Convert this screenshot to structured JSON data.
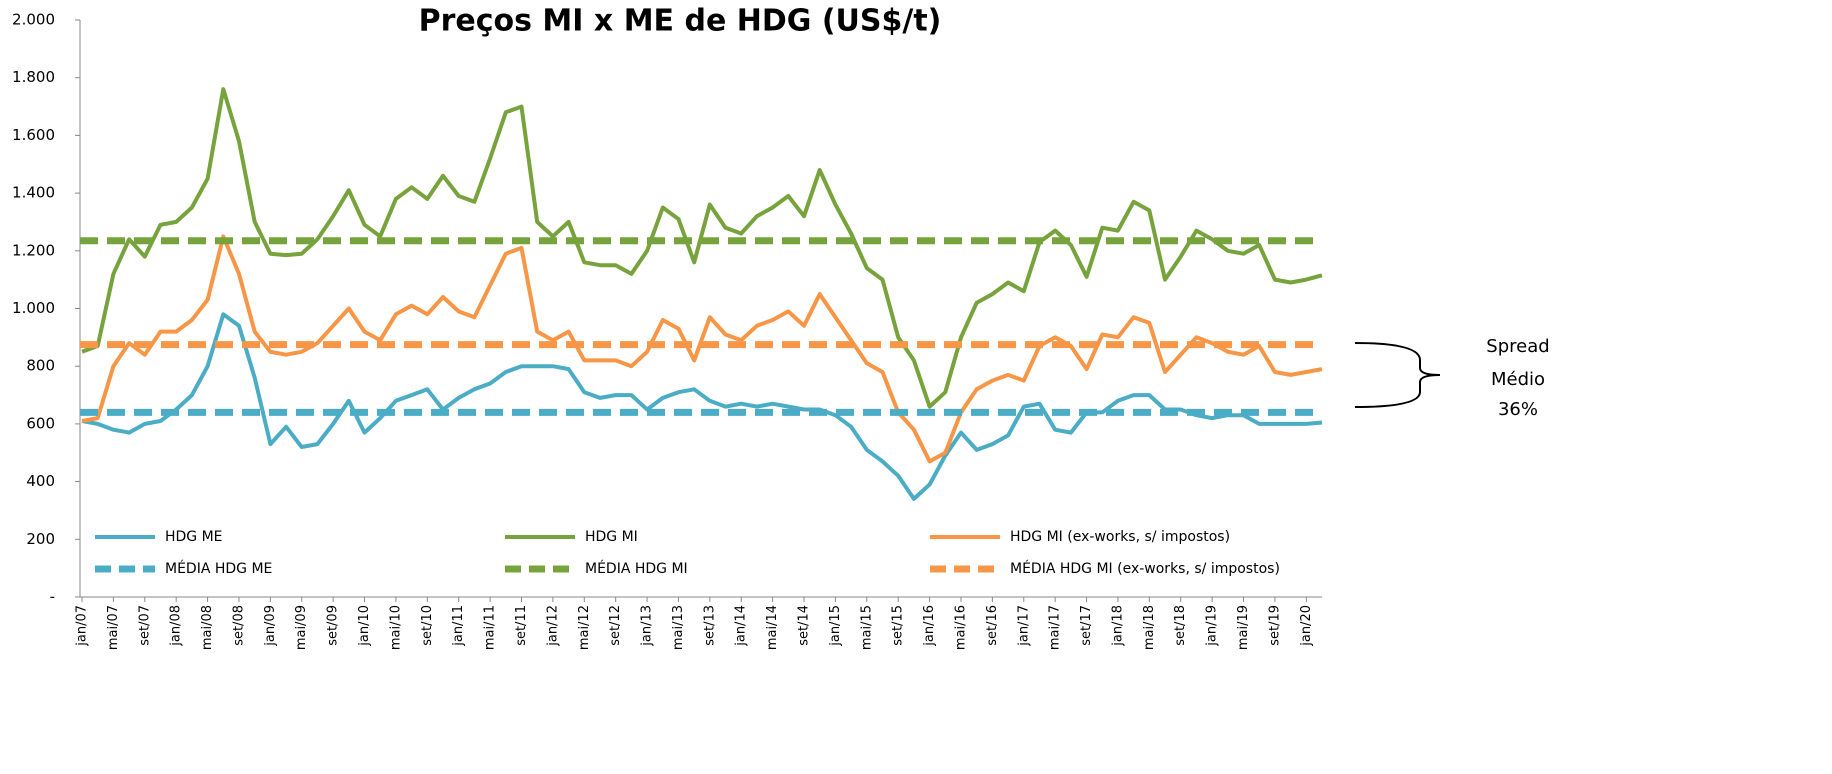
{
  "chart_data": {
    "type": "line",
    "title": "Preços MI x ME de HDG (US$/t)",
    "categories": [
      "jan/07",
      null,
      "mai/07",
      null,
      "set/07",
      null,
      "jan/08",
      null,
      "mai/08",
      null,
      "set/08",
      null,
      "jan/09",
      null,
      "mai/09",
      null,
      "set/09",
      null,
      "jan/10",
      null,
      "mai/10",
      null,
      "set/10",
      null,
      "jan/11",
      null,
      "mai/11",
      null,
      "set/11",
      null,
      "jan/12",
      null,
      "mai/12",
      null,
      "set/12",
      null,
      "jan/13",
      null,
      "mai/13",
      null,
      "set/13",
      null,
      "jan/14",
      null,
      "mai/14",
      null,
      "set/14",
      null,
      "jan/15",
      null,
      "mai/15",
      null,
      "set/15",
      null,
      "jan/16",
      null,
      "mai/16",
      null,
      "set/16",
      null,
      "jan/17",
      null,
      "mai/17",
      null,
      "set/17",
      null,
      "jan/18",
      null,
      "mai/18",
      null,
      "set/18",
      null,
      "jan/19",
      null,
      "mai/19",
      null,
      "set/19",
      null,
      "jan/20",
      null
    ],
    "series": [
      {
        "name": "HDG ME",
        "color": "#4bacc6",
        "values": [
          610,
          600,
          580,
          570,
          600,
          610,
          650,
          700,
          800,
          980,
          940,
          760,
          530,
          590,
          520,
          530,
          600,
          680,
          570,
          620,
          680,
          700,
          720,
          650,
          690,
          720,
          740,
          780,
          800,
          800,
          800,
          790,
          710,
          690,
          700,
          700,
          650,
          690,
          710,
          720,
          680,
          660,
          670,
          660,
          670,
          660,
          650,
          650,
          630,
          590,
          510,
          470,
          420,
          340,
          390,
          490,
          570,
          510,
          530,
          560,
          660,
          670,
          580,
          570,
          640,
          640,
          680,
          700,
          700,
          650,
          650,
          630,
          620,
          630,
          630,
          600,
          600,
          600,
          600,
          605
        ]
      },
      {
        "name": "HDG MI",
        "color": "#77a33c",
        "values": [
          850,
          870,
          1120,
          1240,
          1180,
          1290,
          1300,
          1350,
          1450,
          1760,
          1580,
          1300,
          1190,
          1185,
          1190,
          1240,
          1320,
          1410,
          1290,
          1250,
          1380,
          1420,
          1380,
          1460,
          1390,
          1370,
          1520,
          1680,
          1700,
          1300,
          1250,
          1300,
          1160,
          1150,
          1150,
          1120,
          1200,
          1350,
          1310,
          1160,
          1360,
          1280,
          1260,
          1320,
          1350,
          1390,
          1320,
          1480,
          1360,
          1260,
          1140,
          1100,
          900,
          820,
          660,
          710,
          900,
          1020,
          1050,
          1090,
          1060,
          1230,
          1270,
          1220,
          1110,
          1280,
          1270,
          1370,
          1340,
          1100,
          1180,
          1270,
          1240,
          1200,
          1190,
          1220,
          1100,
          1090,
          1100,
          1115
        ]
      },
      {
        "name": "HDG MI (ex-works, s/ impostos)",
        "color": "#f79646",
        "values": [
          610,
          620,
          800,
          880,
          840,
          920,
          920,
          960,
          1030,
          1250,
          1120,
          920,
          850,
          840,
          850,
          880,
          940,
          1000,
          920,
          890,
          980,
          1010,
          980,
          1040,
          990,
          970,
          1080,
          1190,
          1210,
          920,
          890,
          920,
          820,
          820,
          820,
          800,
          850,
          960,
          930,
          820,
          970,
          910,
          890,
          940,
          960,
          990,
          940,
          1050,
          970,
          890,
          810,
          780,
          640,
          580,
          470,
          500,
          640,
          720,
          750,
          770,
          750,
          870,
          900,
          870,
          790,
          910,
          900,
          970,
          950,
          780,
          840,
          900,
          880,
          850,
          840,
          870,
          780,
          770,
          780,
          790
        ]
      },
      {
        "name": "MÉDIA HDG ME",
        "color": "#4bacc6",
        "dashed": true,
        "value": 640
      },
      {
        "name": "MÉDIA HDG MI",
        "color": "#77a33c",
        "dashed": true,
        "value": 1235
      },
      {
        "name": "MÉDIA HDG MI (ex-works, s/ impostos)",
        "color": "#f79646",
        "dashed": true,
        "value": 875
      }
    ],
    "ylim": [
      0,
      2000
    ],
    "yticks": [
      {
        "value": 0,
        "label": "-"
      },
      200,
      400,
      600,
      800,
      {
        "value": 1000,
        "label": "1.000"
      },
      {
        "value": 1200,
        "label": "1.200"
      },
      {
        "value": 1400,
        "label": "1.400"
      },
      {
        "value": 1600,
        "label": "1.600"
      },
      {
        "value": 1800,
        "label": "1.800"
      },
      {
        "value": 2000,
        "label": "2.000"
      }
    ],
    "grid": false,
    "legend": "bottom",
    "annotation": [
      "Spread",
      "Médio",
      "36%"
    ]
  }
}
